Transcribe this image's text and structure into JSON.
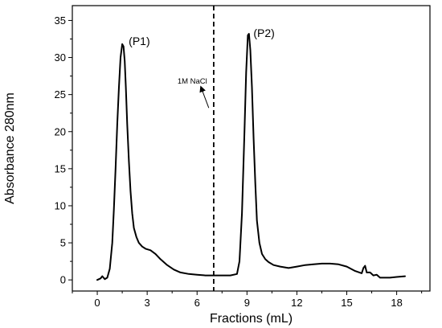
{
  "chart_data": {
    "type": "line",
    "title": "",
    "xlabel": "Fractions (mL)",
    "ylabel": "Absorbance 280nm",
    "xlim": [
      -1.5,
      20
    ],
    "ylim": [
      -1.5,
      37
    ],
    "xticks": [
      0,
      3,
      6,
      9,
      12,
      15,
      18
    ],
    "yticks": [
      0,
      5,
      10,
      15,
      20,
      25,
      30,
      35
    ],
    "xtick_labels": [
      "0",
      "3",
      "6",
      "9",
      "12",
      "15",
      "18"
    ],
    "ytick_labels": [
      "0",
      "5",
      "10",
      "15",
      "20",
      "25",
      "30",
      "35"
    ],
    "grid": false,
    "legend": "none",
    "line_color": "#000000",
    "series": [
      {
        "x": [
          0,
          0.2,
          0.3,
          0.45,
          0.6,
          0.75,
          0.9,
          1.0,
          1.1,
          1.2,
          1.3,
          1.4,
          1.5,
          1.58,
          1.65,
          1.72,
          1.8,
          1.9,
          2.0,
          2.1,
          2.2,
          2.35,
          2.5,
          2.7,
          2.9,
          3.2,
          3.5,
          3.8,
          4.2,
          4.6,
          5.0,
          5.5,
          6.0,
          6.5,
          7.0,
          7.5,
          8.0,
          8.4,
          8.55,
          8.7,
          8.85,
          8.95,
          9.05,
          9.12,
          9.2,
          9.3,
          9.4,
          9.5,
          9.6,
          9.75,
          9.9,
          10.1,
          10.3,
          10.6,
          11.0,
          11.5,
          12.0,
          12.5,
          13.0,
          13.5,
          14.0,
          14.5,
          15.0,
          15.5,
          15.9,
          16.0,
          16.1,
          16.2,
          16.4,
          16.6,
          16.8,
          17.0,
          17.3,
          17.6,
          18.0,
          18.5
        ],
        "y": [
          0,
          0.2,
          0.5,
          0.1,
          0.3,
          1.5,
          5.0,
          9.5,
          15.0,
          21.0,
          26.0,
          30.0,
          31.8,
          31.5,
          29.5,
          26.0,
          21.0,
          16.0,
          12.0,
          9.0,
          7.0,
          5.8,
          5.0,
          4.5,
          4.2,
          4.0,
          3.5,
          2.8,
          2.0,
          1.4,
          1.0,
          0.8,
          0.7,
          0.6,
          0.6,
          0.6,
          0.6,
          0.8,
          2.5,
          9.0,
          20.0,
          28.0,
          33.0,
          33.2,
          31.0,
          26.0,
          19.0,
          13.0,
          8.0,
          5.0,
          3.5,
          2.8,
          2.4,
          2.0,
          1.8,
          1.6,
          1.8,
          2.0,
          2.1,
          2.2,
          2.2,
          2.1,
          1.8,
          1.2,
          0.9,
          1.6,
          1.9,
          1.0,
          1.0,
          0.6,
          0.7,
          0.3,
          0.3,
          0.3,
          0.4,
          0.5
        ]
      }
    ],
    "annotations": [
      {
        "text": "(P1)",
        "x": 1.6,
        "y": 31.8
      },
      {
        "text": "(P2)",
        "x": 9.1,
        "y": 33.2
      },
      {
        "text": "1M NaCl",
        "x": 6.8,
        "y": 26.5
      }
    ],
    "vline": {
      "x": 7.0,
      "style": "dashed"
    }
  }
}
